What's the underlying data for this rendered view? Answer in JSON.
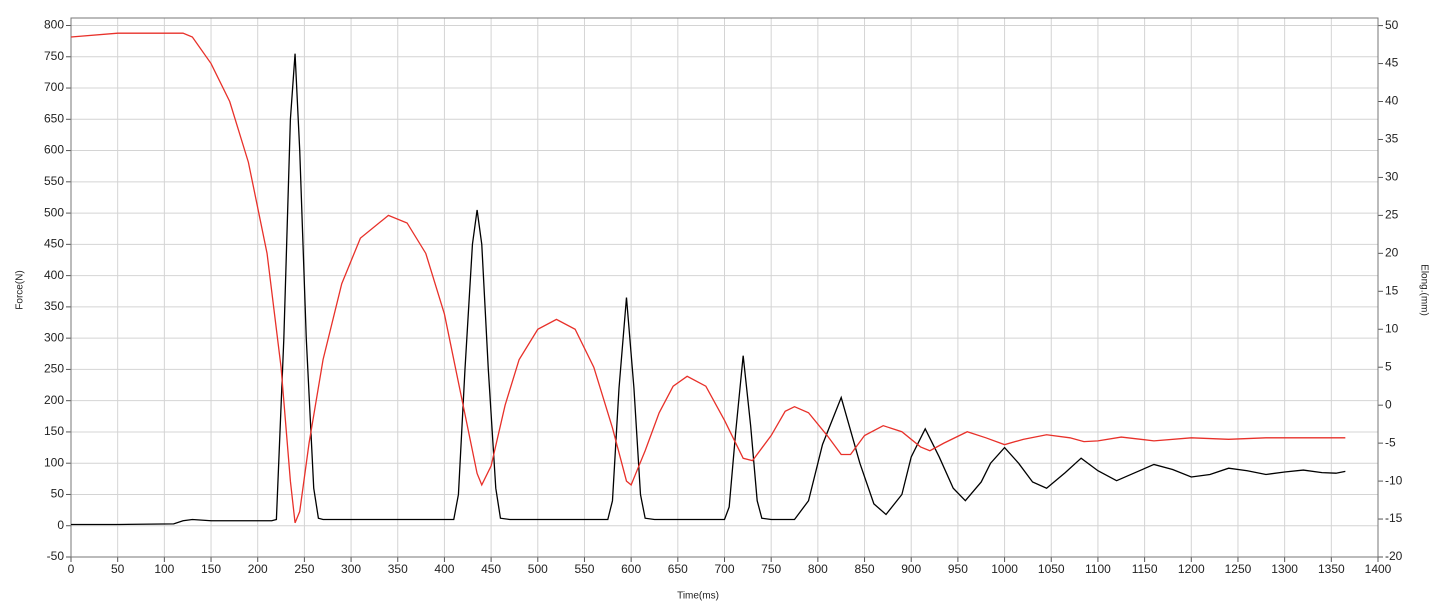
{
  "chart_data": {
    "type": "line",
    "x_label": "Time(ms)",
    "y_label": "Force(N)",
    "y2_label": "Elong.(mm)",
    "xlim": [
      0,
      1400
    ],
    "ylim": [
      -50,
      812
    ],
    "y2lim": [
      -20,
      51
    ],
    "grid": true,
    "xticks": [
      0,
      50,
      100,
      150,
      200,
      250,
      300,
      350,
      400,
      450,
      500,
      550,
      600,
      650,
      700,
      750,
      800,
      850,
      900,
      950,
      1000,
      1050,
      1100,
      1150,
      1200,
      1250,
      1300,
      1350,
      1400
    ],
    "yticks": [
      -50,
      0,
      50,
      100,
      150,
      200,
      250,
      300,
      350,
      400,
      450,
      500,
      550,
      600,
      650,
      700,
      750,
      800
    ],
    "y2ticks": [
      -20,
      -15,
      -10,
      -5,
      0,
      5,
      10,
      15,
      20,
      25,
      30,
      35,
      40,
      45,
      50
    ],
    "series": [
      {
        "color": "#000000",
        "x": [
          0,
          50,
          110,
          120,
          130,
          150,
          215,
          220,
          228,
          235,
          240,
          245,
          252,
          260,
          265,
          270,
          410,
          415,
          422,
          430,
          435,
          440,
          447,
          455,
          460,
          470,
          575,
          580,
          587,
          595,
          603,
          610,
          615,
          625,
          700,
          705,
          712,
          720,
          728,
          735,
          740,
          750,
          775,
          790,
          805,
          825,
          845,
          860,
          873,
          890,
          900,
          915,
          930,
          945,
          958,
          975,
          985,
          1000,
          1015,
          1030,
          1045,
          1065,
          1082,
          1100,
          1120,
          1140,
          1160,
          1180,
          1200,
          1220,
          1240,
          1260,
          1280,
          1300,
          1320,
          1340,
          1355,
          1365
        ],
        "values": [
          2,
          2,
          3,
          8,
          10,
          8,
          8,
          10,
          300,
          650,
          755,
          600,
          300,
          60,
          12,
          10,
          10,
          50,
          250,
          450,
          505,
          450,
          250,
          60,
          12,
          10,
          10,
          40,
          220,
          365,
          220,
          50,
          12,
          10,
          10,
          30,
          150,
          272,
          160,
          40,
          12,
          10,
          10,
          40,
          130,
          205,
          100,
          35,
          18,
          50,
          110,
          155,
          110,
          60,
          40,
          70,
          100,
          125,
          100,
          70,
          60,
          85,
          108,
          88,
          72,
          85,
          98,
          90,
          78,
          82,
          92,
          88,
          82,
          86,
          89,
          85,
          84,
          87
        ]
      },
      {
        "color": "#e8312a",
        "axis": "y2",
        "x": [
          0,
          50,
          110,
          120,
          130,
          150,
          170,
          190,
          210,
          225,
          235,
          240,
          245,
          255,
          270,
          290,
          310,
          340,
          360,
          380,
          400,
          420,
          435,
          440,
          450,
          465,
          480,
          500,
          520,
          540,
          560,
          580,
          595,
          600,
          615,
          630,
          645,
          660,
          680,
          700,
          720,
          730,
          750,
          765,
          775,
          790,
          810,
          825,
          835,
          850,
          870,
          890,
          910,
          920,
          935,
          960,
          980,
          1000,
          1020,
          1045,
          1070,
          1085,
          1100,
          1125,
          1160,
          1200,
          1240,
          1280,
          1320,
          1365
        ],
        "values": [
          48.5,
          49,
          49,
          49,
          48.5,
          45,
          40,
          32,
          20,
          5,
          -10,
          -15.5,
          -14,
          -5,
          6,
          16,
          22,
          25,
          24,
          20,
          12,
          0,
          -9,
          -10.5,
          -8,
          0,
          6,
          10,
          11.3,
          10,
          5,
          -3,
          -10,
          -10.5,
          -6,
          -1,
          2.5,
          3.8,
          2.5,
          -2,
          -7,
          -7.3,
          -4,
          -0.8,
          -0.2,
          -1,
          -4,
          -6.5,
          -6.5,
          -4,
          -2.7,
          -3.5,
          -5.5,
          -6,
          -5,
          -3.5,
          -4.3,
          -5.2,
          -4.5,
          -3.9,
          -4.3,
          -4.8,
          -4.7,
          -4.2,
          -4.7,
          -4.3,
          -4.5,
          -4.3,
          -4.3,
          -4.3
        ]
      }
    ]
  }
}
